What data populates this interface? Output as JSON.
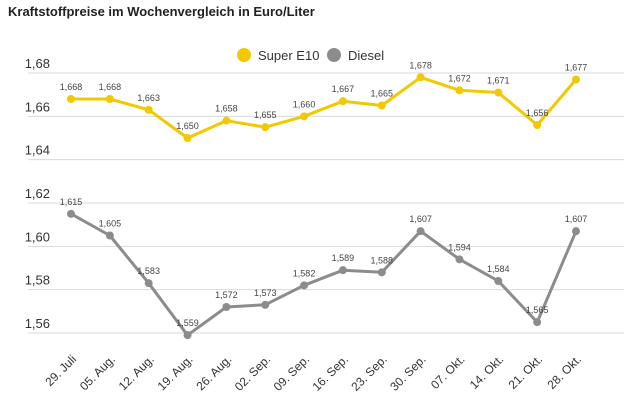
{
  "chart_data": {
    "type": "line",
    "title": "Kraftstoffpreise im Wochenvergleich in Euro/Liter",
    "xlabel": "",
    "ylabel": "",
    "categories": [
      "29. Juli",
      "05. Aug.",
      "12. Aug.",
      "19. Aug.",
      "26. Aug.",
      "02. Sep.",
      "09. Sep.",
      "16. Sep.",
      "23. Sep.",
      "30. Sep.",
      "07. Okt.",
      "14. Okt.",
      "21. Okt.",
      "28. Okt."
    ],
    "series": [
      {
        "name": "Super E10",
        "color": "#f2c800",
        "values": [
          1.668,
          1.668,
          1.663,
          1.65,
          1.658,
          1.655,
          1.66,
          1.667,
          1.665,
          1.678,
          1.672,
          1.671,
          1.656,
          1.677
        ],
        "labels": [
          "1,668",
          "1,668",
          "1,663",
          "1,650",
          "1,658",
          "1,655",
          "1,660",
          "1,667",
          "1,665",
          "1,678",
          "1,672",
          "1,671",
          "1,656",
          "1,677"
        ]
      },
      {
        "name": "Diesel",
        "color": "#8c8c8c",
        "values": [
          1.615,
          1.605,
          1.583,
          1.559,
          1.572,
          1.573,
          1.582,
          1.589,
          1.588,
          1.607,
          1.594,
          1.584,
          1.565,
          1.607
        ],
        "labels": [
          "1,615",
          "1,605",
          "1,583",
          "1,559",
          "1,572",
          "1,573",
          "1,582",
          "1,589",
          "1,588",
          "1,607",
          "1,594",
          "1,584",
          "1,565",
          "1,607"
        ]
      }
    ],
    "yticks": [
      1.56,
      1.58,
      1.6,
      1.62,
      1.64,
      1.66,
      1.68
    ],
    "ytick_labels": [
      "1,56",
      "1,58",
      "1,60",
      "1,62",
      "1,64",
      "1,66",
      "1,68"
    ],
    "ylim": [
      1.55,
      1.685
    ],
    "grid": true,
    "legend_position": "top-right"
  }
}
